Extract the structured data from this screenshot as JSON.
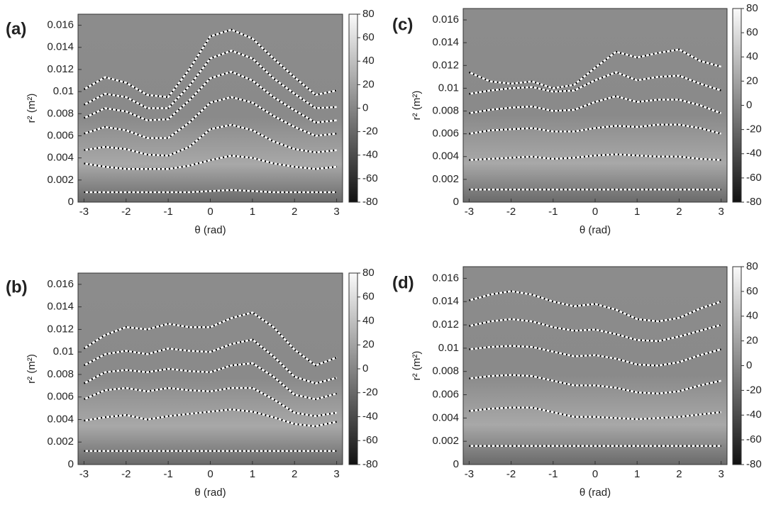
{
  "chart_data": [
    {
      "type": "contour",
      "title": "(a)",
      "xlabel": "θ (rad)",
      "ylabel": "r² (m²)",
      "xlim": [
        -3.1416,
        3.1416
      ],
      "xticks": [
        -3,
        -2,
        -1,
        0,
        1,
        2,
        3
      ],
      "ylim": [
        0,
        0.017
      ],
      "yticks": [
        0,
        0.002,
        0.004,
        0.006,
        0.008,
        0.01,
        0.012,
        0.014,
        0.016
      ],
      "colorbar": {
        "lim": [
          -80,
          80
        ],
        "ticks": [
          -80,
          -60,
          -40,
          -20,
          0,
          20,
          40,
          60,
          80
        ]
      },
      "x": [
        -3,
        -2.5,
        -2,
        -1.5,
        -1,
        -0.5,
        0,
        0.5,
        1,
        1.5,
        2,
        2.5,
        3
      ],
      "series": [
        {
          "color": "#ffffff",
          "values": [
            0.0009,
            0.0009,
            0.0009,
            0.0009,
            0.0009,
            0.0009,
            0.001,
            0.0011,
            0.001,
            0.0009,
            0.0009,
            0.0009,
            0.0009
          ]
        },
        {
          "color": "#ffffff",
          "values": [
            0.0035,
            0.0032,
            0.003,
            0.003,
            0.003,
            0.0033,
            0.0038,
            0.0042,
            0.004,
            0.0035,
            0.0032,
            0.003,
            0.0032
          ]
        },
        {
          "color": "#ffffff",
          "values": [
            0.0047,
            0.005,
            0.0048,
            0.0043,
            0.0042,
            0.005,
            0.0066,
            0.007,
            0.0065,
            0.0055,
            0.0048,
            0.0045,
            0.0047
          ]
        },
        {
          "color": "#ffffff",
          "values": [
            0.0062,
            0.0068,
            0.0065,
            0.0058,
            0.0058,
            0.0072,
            0.009,
            0.0095,
            0.009,
            0.0078,
            0.0068,
            0.006,
            0.0062
          ]
        },
        {
          "color": "#ffffff",
          "values": [
            0.0076,
            0.0085,
            0.0082,
            0.0074,
            0.0075,
            0.0092,
            0.0112,
            0.0118,
            0.011,
            0.0095,
            0.0083,
            0.0072,
            0.0074
          ]
        },
        {
          "color": "#ffffff",
          "values": [
            0.0088,
            0.0098,
            0.0095,
            0.0085,
            0.0085,
            0.0105,
            0.013,
            0.0137,
            0.013,
            0.0112,
            0.0098,
            0.0085,
            0.0086
          ]
        },
        {
          "color": "#ffffff",
          "values": [
            0.0102,
            0.0113,
            0.0108,
            0.0097,
            0.0095,
            0.012,
            0.015,
            0.0156,
            0.0148,
            0.013,
            0.0113,
            0.0097,
            0.0101
          ]
        }
      ]
    },
    {
      "type": "contour",
      "title": "(c)",
      "xlabel": "θ (rad)",
      "ylabel": "r² (m²)",
      "xlim": [
        -3.1416,
        3.1416
      ],
      "xticks": [
        -3,
        -2,
        -1,
        0,
        1,
        2,
        3
      ],
      "ylim": [
        0,
        0.017
      ],
      "yticks": [
        0,
        0.002,
        0.004,
        0.006,
        0.008,
        0.01,
        0.012,
        0.014,
        0.016
      ],
      "colorbar": {
        "lim": [
          -80,
          80
        ],
        "ticks": [
          -80,
          -60,
          -40,
          -20,
          0,
          20,
          40,
          60,
          80
        ]
      },
      "x": [
        -3,
        -2.5,
        -2,
        -1.5,
        -1,
        -0.5,
        0,
        0.5,
        1,
        1.5,
        2,
        2.5,
        3
      ],
      "series": [
        {
          "color": "#ffffff",
          "values": [
            0.0011,
            0.0011,
            0.0011,
            0.0011,
            0.0011,
            0.0011,
            0.0011,
            0.0011,
            0.0011,
            0.0011,
            0.0011,
            0.0011,
            0.0011
          ]
        },
        {
          "color": "#ffffff",
          "values": [
            0.0037,
            0.0038,
            0.0039,
            0.004,
            0.0038,
            0.0039,
            0.0041,
            0.0042,
            0.0041,
            0.004,
            0.004,
            0.0038,
            0.0037
          ]
        },
        {
          "color": "#ffffff",
          "values": [
            0.006,
            0.0063,
            0.0064,
            0.0065,
            0.0062,
            0.0062,
            0.0065,
            0.0067,
            0.0066,
            0.0068,
            0.0068,
            0.0065,
            0.006
          ]
        },
        {
          "color": "#ffffff",
          "values": [
            0.0078,
            0.0081,
            0.0083,
            0.0084,
            0.008,
            0.0081,
            0.0088,
            0.0093,
            0.0088,
            0.009,
            0.009,
            0.0085,
            0.0078
          ]
        },
        {
          "color": "#ffffff",
          "values": [
            0.0095,
            0.0098,
            0.01,
            0.0101,
            0.0097,
            0.0098,
            0.0107,
            0.0114,
            0.0107,
            0.011,
            0.0111,
            0.0104,
            0.0098
          ]
        },
        {
          "color": "#ffffff",
          "values": [
            0.0114,
            0.0106,
            0.0104,
            0.0106,
            0.01,
            0.0103,
            0.0118,
            0.0132,
            0.0127,
            0.0131,
            0.0134,
            0.0124,
            0.0119
          ]
        }
      ]
    },
    {
      "type": "contour",
      "title": "(b)",
      "xlabel": "θ (rad)",
      "ylabel": "r² (m²)",
      "xlim": [
        -3.1416,
        3.1416
      ],
      "xticks": [
        -3,
        -2,
        -1,
        0,
        1,
        2,
        3
      ],
      "ylim": [
        0,
        0.017
      ],
      "yticks": [
        0,
        0.002,
        0.004,
        0.006,
        0.008,
        0.01,
        0.012,
        0.014,
        0.016
      ],
      "colorbar": {
        "lim": [
          -80,
          80
        ],
        "ticks": [
          -80,
          -60,
          -40,
          -20,
          0,
          20,
          40,
          60,
          80
        ]
      },
      "x": [
        -3,
        -2.5,
        -2,
        -1.5,
        -1,
        -0.5,
        0,
        0.5,
        1,
        1.5,
        2,
        2.5,
        3
      ],
      "series": [
        {
          "color": "#ffffff",
          "values": [
            0.0012,
            0.0012,
            0.0012,
            0.0012,
            0.0012,
            0.0012,
            0.0012,
            0.0012,
            0.0012,
            0.0012,
            0.0012,
            0.0012,
            0.0012
          ]
        },
        {
          "color": "#ffffff",
          "values": [
            0.0039,
            0.0042,
            0.0044,
            0.004,
            0.0043,
            0.0045,
            0.0047,
            0.0049,
            0.0047,
            0.0042,
            0.0036,
            0.0034,
            0.0038
          ]
        },
        {
          "color": "#ffffff",
          "values": [
            0.0058,
            0.0066,
            0.0068,
            0.0065,
            0.0068,
            0.0066,
            0.0065,
            0.0068,
            0.0068,
            0.0058,
            0.0046,
            0.0043,
            0.0046
          ]
        },
        {
          "color": "#ffffff",
          "values": [
            0.0072,
            0.0082,
            0.0084,
            0.0082,
            0.0085,
            0.0083,
            0.0082,
            0.0088,
            0.009,
            0.0078,
            0.0062,
            0.0058,
            0.0063
          ]
        },
        {
          "color": "#ffffff",
          "values": [
            0.0088,
            0.0098,
            0.0101,
            0.0098,
            0.0103,
            0.0101,
            0.01,
            0.0107,
            0.0111,
            0.0096,
            0.0078,
            0.0072,
            0.0077
          ]
        },
        {
          "color": "#ffffff",
          "values": [
            0.0103,
            0.0115,
            0.0122,
            0.012,
            0.0125,
            0.0122,
            0.0122,
            0.013,
            0.0135,
            0.0122,
            0.0102,
            0.0088,
            0.0095
          ]
        }
      ]
    },
    {
      "type": "contour",
      "title": "(d)",
      "xlabel": "θ (rad)",
      "ylabel": "r² (m²)",
      "xlim": [
        -3.1416,
        3.1416
      ],
      "xticks": [
        -3,
        -2,
        -1,
        0,
        1,
        2,
        3
      ],
      "ylim": [
        0,
        0.017
      ],
      "yticks": [
        0,
        0.002,
        0.004,
        0.006,
        0.008,
        0.01,
        0.012,
        0.014,
        0.016
      ],
      "colorbar": {
        "lim": [
          -80,
          80
        ],
        "ticks": [
          -80,
          -60,
          -40,
          -20,
          0,
          20,
          40,
          60,
          80
        ]
      },
      "x": [
        -3,
        -2.5,
        -2,
        -1.5,
        -1,
        -0.5,
        0,
        0.5,
        1,
        1.5,
        2,
        2.5,
        3
      ],
      "series": [
        {
          "color": "#ffffff",
          "values": [
            0.0016,
            0.0016,
            0.0016,
            0.0016,
            0.0016,
            0.0016,
            0.0016,
            0.0016,
            0.0016,
            0.0016,
            0.0016,
            0.0016,
            0.0016
          ]
        },
        {
          "color": "#ffffff",
          "values": [
            0.0046,
            0.0048,
            0.0049,
            0.0049,
            0.0045,
            0.0041,
            0.0041,
            0.004,
            0.0039,
            0.004,
            0.0041,
            0.0043,
            0.0045
          ]
        },
        {
          "color": "#ffffff",
          "values": [
            0.0074,
            0.0076,
            0.0077,
            0.0076,
            0.0072,
            0.0068,
            0.0068,
            0.0066,
            0.0062,
            0.0061,
            0.0063,
            0.0068,
            0.0072
          ]
        },
        {
          "color": "#ffffff",
          "values": [
            0.0099,
            0.0101,
            0.0102,
            0.0101,
            0.0097,
            0.0093,
            0.0094,
            0.0091,
            0.0086,
            0.0085,
            0.0088,
            0.0094,
            0.0099
          ]
        },
        {
          "color": "#ffffff",
          "values": [
            0.0119,
            0.0123,
            0.0125,
            0.0123,
            0.0118,
            0.0115,
            0.0116,
            0.0112,
            0.0107,
            0.0106,
            0.011,
            0.0115,
            0.012
          ]
        },
        {
          "color": "#ffffff",
          "values": [
            0.0141,
            0.0146,
            0.0149,
            0.0146,
            0.014,
            0.0136,
            0.0138,
            0.0133,
            0.0125,
            0.0123,
            0.0126,
            0.0134,
            0.014
          ]
        }
      ]
    }
  ]
}
